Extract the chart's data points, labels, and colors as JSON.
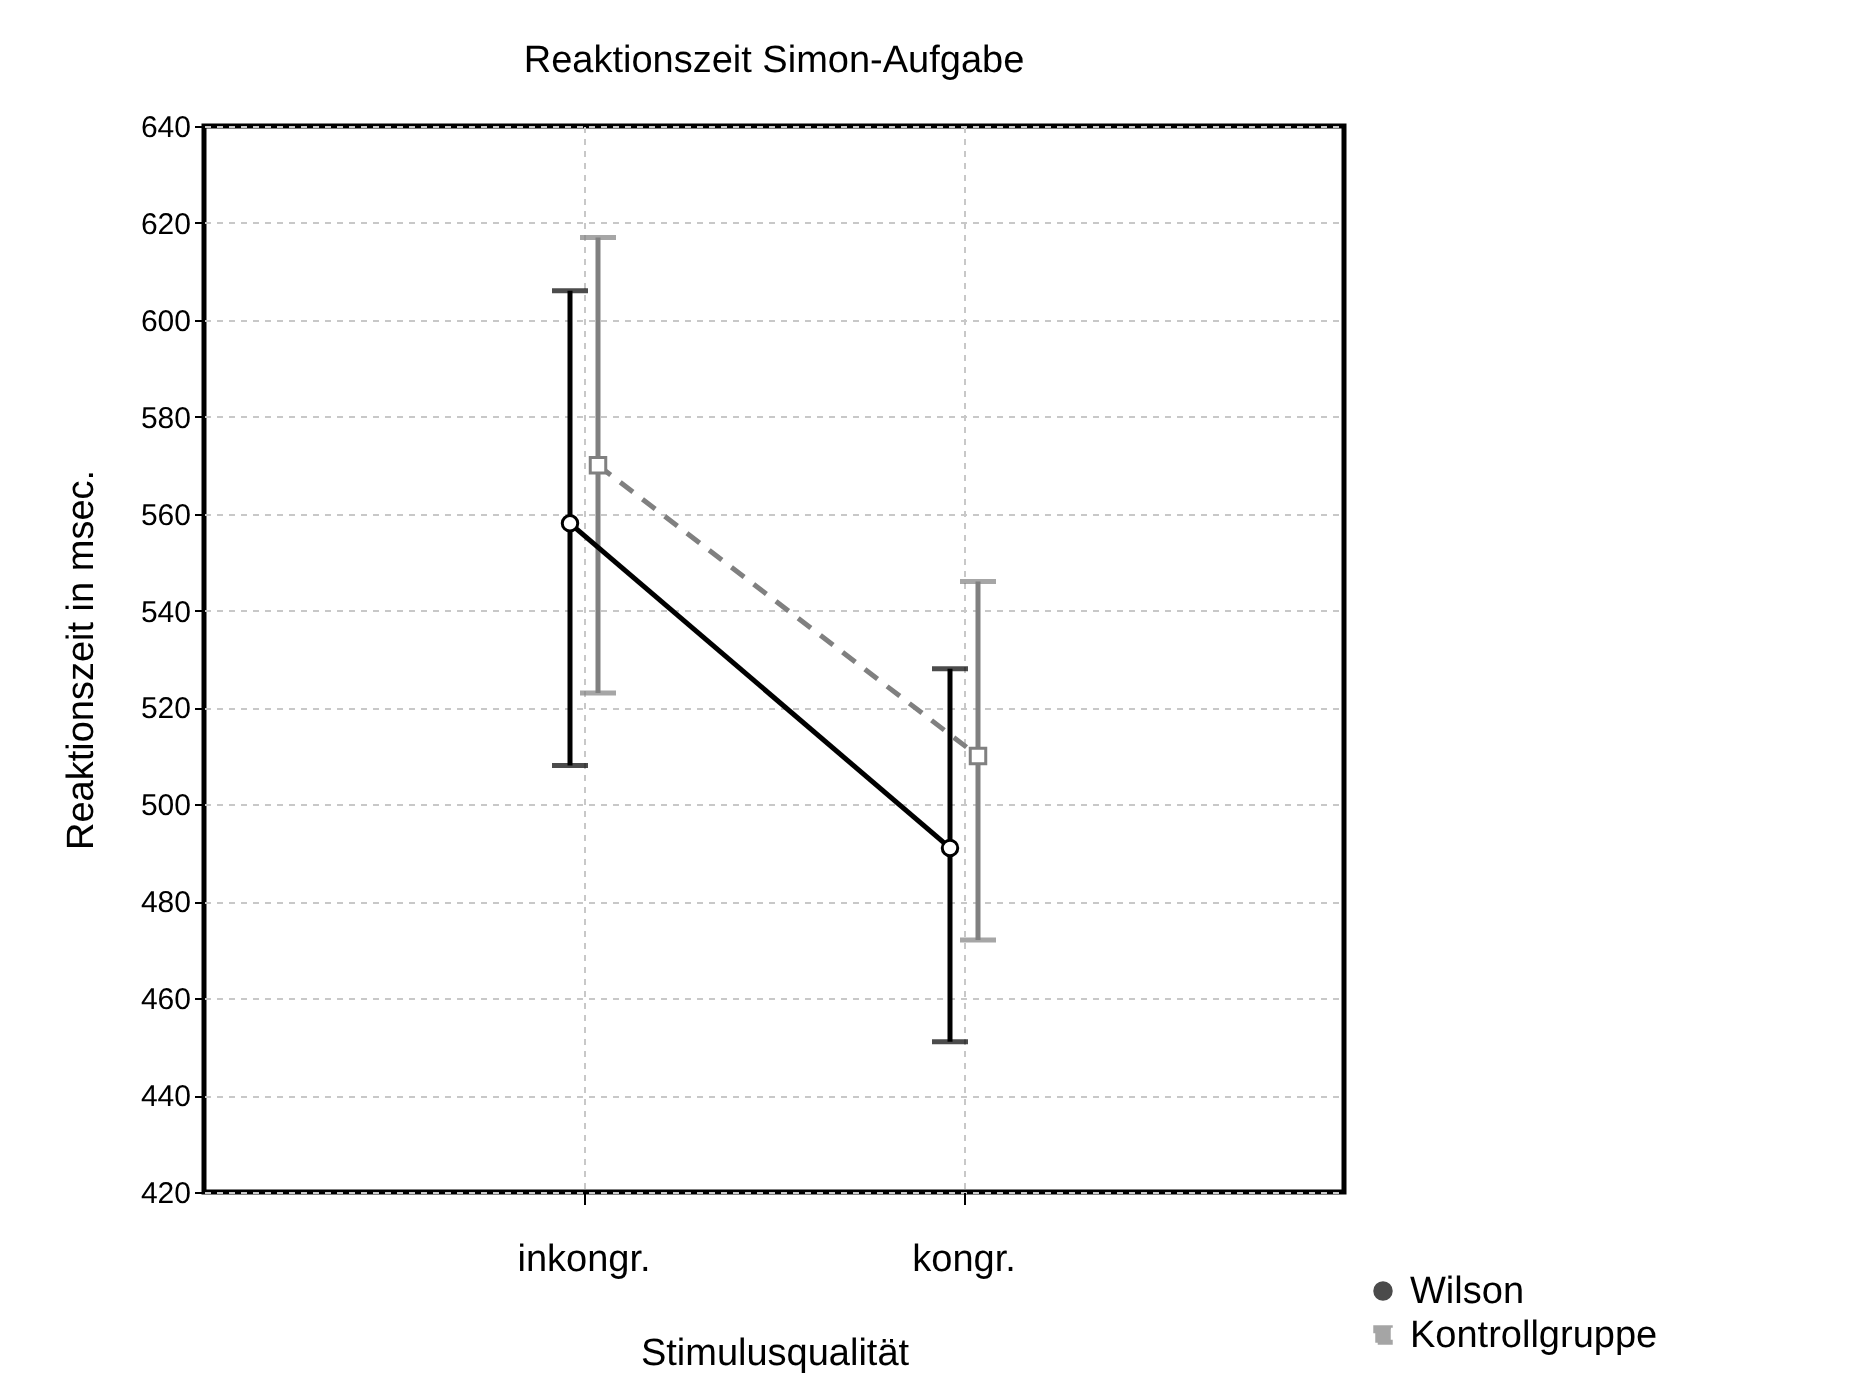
{
  "chart_data": {
    "type": "line",
    "title": "Reaktionszeit Simon-Aufgabe",
    "xlabel": "Stimulusqualität",
    "ylabel": "Reaktionszeit in msec.",
    "categories": [
      "inkongr.",
      "kongr."
    ],
    "series": [
      {
        "name": "Wilson",
        "color": "#000000",
        "values": [
          558,
          491
        ],
        "errors": [
          [
            508,
            606
          ],
          [
            451,
            528
          ]
        ],
        "marker": "circle",
        "line_style": "solid"
      },
      {
        "name": "Kontrollgruppe",
        "color": "#808080",
        "values": [
          570,
          510
        ],
        "errors": [
          [
            523,
            617
          ],
          [
            472,
            546
          ]
        ],
        "marker": "square",
        "line_style": "dashed"
      }
    ],
    "ylim": [
      420,
      640
    ],
    "yticks": [
      420,
      440,
      460,
      480,
      500,
      520,
      540,
      560,
      580,
      600,
      620,
      640
    ],
    "grid": true,
    "legend": "bottom right"
  }
}
